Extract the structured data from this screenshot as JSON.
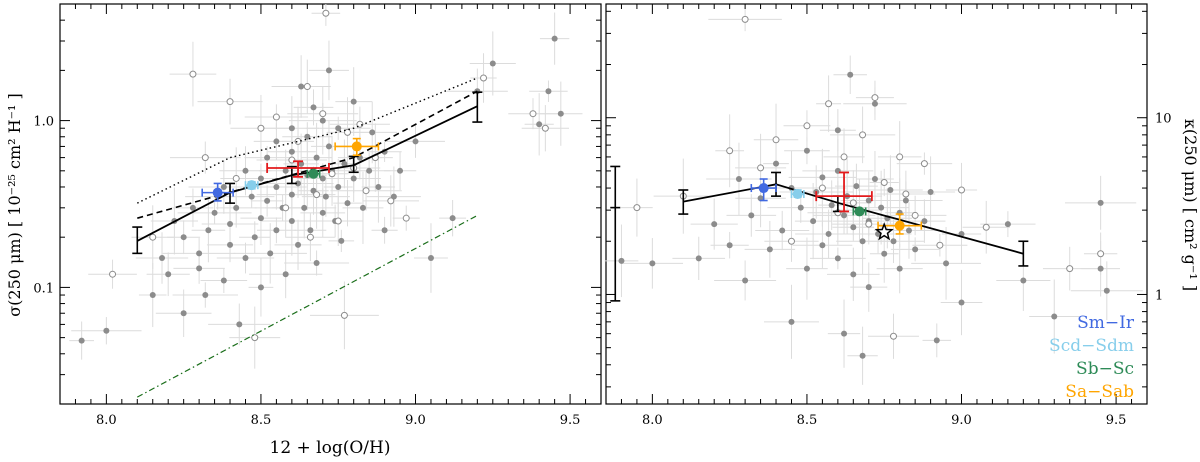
{
  "chart_data": {
    "type": "scatter",
    "xlabel": "12 + log(O/H)",
    "xlim": [
      7.85,
      9.6
    ],
    "xticks": [
      "8.0",
      "8.5",
      "9.0",
      "9.5"
    ],
    "grid": false,
    "panels": [
      {
        "id": "left",
        "ylabel": "σ(250 μm)  [ 10⁻²⁵ cm² H⁻¹ ]",
        "yscale": "log",
        "ylim": [
          0.02,
          5.0
        ],
        "yticks": [
          "0.1",
          "1.0"
        ],
        "model_line": {
          "x": [
            8.1,
            8.4,
            8.6,
            8.8,
            9.2
          ],
          "y": [
            0.19,
            0.37,
            0.47,
            0.54,
            1.22
          ],
          "err_lo": [
            0.16,
            0.32,
            0.42,
            0.49,
            0.98
          ],
          "err_hi": [
            0.23,
            0.42,
            0.53,
            0.61,
            1.48
          ]
        },
        "dashed_line": {
          "x": [
            8.1,
            8.8,
            9.2
          ],
          "y": [
            0.26,
            0.6,
            1.5
          ]
        },
        "dotted_line": {
          "x": [
            8.1,
            8.4,
            8.8,
            9.2
          ],
          "y": [
            0.32,
            0.6,
            0.9,
            1.8
          ]
        },
        "dashdot_line": {
          "x": [
            8.1,
            9.2
          ],
          "y": [
            0.022,
            0.27
          ]
        },
        "red_point": {
          "x": 8.62,
          "y": 0.52,
          "xerr": 0.1,
          "y_lo": 0.46,
          "y_hi": 0.57
        },
        "class_points": [
          {
            "label": "Sm−Ir",
            "color": "#4169e1",
            "x": 8.36,
            "y": 0.37,
            "xerr": 0.05,
            "y_lo": 0.33,
            "y_hi": 0.42
          },
          {
            "label": "Scd−Sdm",
            "color": "#87ceeb",
            "x": 8.47,
            "y": 0.41,
            "xerr": 0.02,
            "y_lo": 0.39,
            "y_hi": 0.43
          },
          {
            "label": "Sb−Sc",
            "color": "#2e8b57",
            "x": 8.67,
            "y": 0.48,
            "xerr": 0.02,
            "y_lo": 0.46,
            "y_hi": 0.5
          },
          {
            "label": "Sa−Sab",
            "color": "#ffa500",
            "x": 8.81,
            "y": 0.7,
            "xerr": 0.07,
            "y_lo": 0.62,
            "y_hi": 0.78
          }
        ],
        "galaxies_filled": [
          [
            7.92,
            0.048
          ],
          [
            8.0,
            0.055
          ],
          [
            8.15,
            0.09
          ],
          [
            8.18,
            0.15
          ],
          [
            8.2,
            0.12
          ],
          [
            8.22,
            0.25
          ],
          [
            8.25,
            0.07
          ],
          [
            8.25,
            0.2
          ],
          [
            8.28,
            0.3
          ],
          [
            8.3,
            0.13
          ],
          [
            8.3,
            0.16
          ],
          [
            8.32,
            0.09
          ],
          [
            8.33,
            0.22
          ],
          [
            8.35,
            0.28
          ],
          [
            8.36,
            0.35
          ],
          [
            8.38,
            0.11
          ],
          [
            8.38,
            0.4
          ],
          [
            8.4,
            0.18
          ],
          [
            8.4,
            0.24
          ],
          [
            8.42,
            0.3
          ],
          [
            8.43,
            0.06
          ],
          [
            8.45,
            0.5
          ],
          [
            8.45,
            0.15
          ],
          [
            8.47,
            0.35
          ],
          [
            8.48,
            0.2
          ],
          [
            8.5,
            0.26
          ],
          [
            8.5,
            0.45
          ],
          [
            8.5,
            0.1
          ],
          [
            8.52,
            0.33
          ],
          [
            8.52,
            0.6
          ],
          [
            8.53,
            0.16
          ],
          [
            8.55,
            0.4
          ],
          [
            8.55,
            0.22
          ],
          [
            8.55,
            0.75
          ],
          [
            8.57,
            0.3
          ],
          [
            8.58,
            0.5
          ],
          [
            8.58,
            0.12
          ],
          [
            8.6,
            0.36
          ],
          [
            8.6,
            0.65
          ],
          [
            8.6,
            0.25
          ],
          [
            8.6,
            0.9
          ],
          [
            8.62,
            0.42
          ],
          [
            8.62,
            0.18
          ],
          [
            8.63,
            0.55
          ],
          [
            8.63,
            1.6
          ],
          [
            8.64,
            0.3
          ],
          [
            8.65,
            0.47
          ],
          [
            8.65,
            0.8
          ],
          [
            8.66,
            0.22
          ],
          [
            8.67,
            0.38
          ],
          [
            8.67,
            1.2
          ],
          [
            8.68,
            0.6
          ],
          [
            8.68,
            0.14
          ],
          [
            8.7,
            0.45
          ],
          [
            8.7,
            0.28
          ],
          [
            8.7,
            1.0
          ],
          [
            8.71,
            0.35
          ],
          [
            8.72,
            0.7
          ],
          [
            8.72,
            2.0
          ],
          [
            8.73,
            0.5
          ],
          [
            8.74,
            0.25
          ],
          [
            8.75,
            0.4
          ],
          [
            8.75,
            0.9
          ],
          [
            8.76,
            0.19
          ],
          [
            8.77,
            0.55
          ],
          [
            8.78,
            0.32
          ],
          [
            8.8,
            0.45
          ],
          [
            8.8,
            1.3
          ],
          [
            8.82,
            0.6
          ],
          [
            8.83,
            0.3
          ],
          [
            8.85,
            0.5
          ],
          [
            8.86,
            0.85
          ],
          [
            8.88,
            0.4
          ],
          [
            8.9,
            0.22
          ],
          [
            8.9,
            0.65
          ],
          [
            8.93,
            0.35
          ],
          [
            8.95,
            0.5
          ],
          [
            9.0,
            0.75
          ],
          [
            9.05,
            0.15
          ],
          [
            9.12,
            0.26
          ],
          [
            9.2,
            1.5
          ],
          [
            9.25,
            2.2
          ],
          [
            9.4,
            0.95
          ],
          [
            9.43,
            1.5
          ],
          [
            9.45,
            3.1
          ],
          [
            9.47,
            1.1
          ]
        ],
        "galaxies_open": [
          [
            8.02,
            0.12
          ],
          [
            8.15,
            0.2
          ],
          [
            8.28,
            1.9
          ],
          [
            8.32,
            0.6
          ],
          [
            8.4,
            1.3
          ],
          [
            8.42,
            0.45
          ],
          [
            8.48,
            0.05
          ],
          [
            8.5,
            0.9
          ],
          [
            8.55,
            1.05
          ],
          [
            8.58,
            0.3
          ],
          [
            8.6,
            0.58
          ],
          [
            8.62,
            0.75
          ],
          [
            8.65,
            1.6
          ],
          [
            8.66,
            0.2
          ],
          [
            8.68,
            0.36
          ],
          [
            8.7,
            1.1
          ],
          [
            8.71,
            4.4
          ],
          [
            8.73,
            0.48
          ],
          [
            8.75,
            0.25
          ],
          [
            8.77,
            0.068
          ],
          [
            8.78,
            0.85
          ],
          [
            8.8,
            0.52
          ],
          [
            8.82,
            0.95
          ],
          [
            8.84,
            0.38
          ],
          [
            8.87,
            0.6
          ],
          [
            8.92,
            0.33
          ],
          [
            8.97,
            0.26
          ],
          [
            9.22,
            1.8
          ],
          [
            9.38,
            1.1
          ],
          [
            9.42,
            0.9
          ]
        ]
      },
      {
        "id": "right",
        "ylabel": "κ(250 μm)  [ cm² g⁻¹ ]",
        "yscale": "log",
        "ylim": [
          0.24,
          44.0
        ],
        "yticks": [
          "1",
          "10"
        ],
        "model_line": {
          "x": [
            8.1,
            8.4,
            8.6,
            9.2
          ],
          "y": [
            3.35,
            4.2,
            3.3,
            1.7
          ],
          "err_lo": [
            2.85,
            3.6,
            2.95,
            1.45
          ],
          "err_hi": [
            3.9,
            4.9,
            3.6,
            2.0
          ]
        },
        "big_errorbar": {
          "x": 7.88,
          "y": 3.1,
          "y_lo": 0.92,
          "y_hi": 5.3
        },
        "red_point": {
          "x": 8.62,
          "y": 3.6,
          "xerr": 0.09,
          "y_lo": 2.95,
          "y_hi": 4.9
        },
        "star_point": {
          "x": 8.75,
          "y": 2.25
        },
        "class_points": [
          {
            "label": "Sm−Ir",
            "color": "#4169e1",
            "x": 8.36,
            "y": 4.0,
            "xerr": 0.04,
            "y_lo": 3.4,
            "y_hi": 4.5
          },
          {
            "label": "Scd−Sdm",
            "color": "#87ceeb",
            "x": 8.47,
            "y": 3.7,
            "xerr": 0.02,
            "y_lo": 3.55,
            "y_hi": 3.9
          },
          {
            "label": "Sb−Sc",
            "color": "#2e8b57",
            "x": 8.67,
            "y": 2.95,
            "xerr": 0.02,
            "y_lo": 2.85,
            "y_hi": 3.05
          },
          {
            "label": "Sa−Sab",
            "color": "#ffa500",
            "x": 8.8,
            "y": 2.45,
            "xerr": 0.07,
            "y_lo": 2.2,
            "y_hi": 2.85
          }
        ],
        "galaxies_filled": [
          [
            7.9,
            1.55
          ],
          [
            8.0,
            1.5
          ],
          [
            8.15,
            1.6
          ],
          [
            8.2,
            2.5
          ],
          [
            8.25,
            1.9
          ],
          [
            8.28,
            4.5
          ],
          [
            8.3,
            1.2
          ],
          [
            8.32,
            2.8
          ],
          [
            8.35,
            3.5
          ],
          [
            8.38,
            1.8
          ],
          [
            8.4,
            5.5
          ],
          [
            8.42,
            2.3
          ],
          [
            8.45,
            0.7
          ],
          [
            8.45,
            4.0
          ],
          [
            8.48,
            3.1
          ],
          [
            8.5,
            1.4
          ],
          [
            8.5,
            6.5
          ],
          [
            8.52,
            2.6
          ],
          [
            8.53,
            3.8
          ],
          [
            8.55,
            1.9
          ],
          [
            8.55,
            4.6
          ],
          [
            8.57,
            2.2
          ],
          [
            8.58,
            3.2
          ],
          [
            8.6,
            1.6
          ],
          [
            8.6,
            5.0
          ],
          [
            8.6,
            8.5
          ],
          [
            8.62,
            2.8
          ],
          [
            8.62,
            0.6
          ],
          [
            8.63,
            3.6
          ],
          [
            8.64,
            17.5
          ],
          [
            8.65,
            2.4
          ],
          [
            8.65,
            1.3
          ],
          [
            8.66,
            4.1
          ],
          [
            8.67,
            3.0
          ],
          [
            8.68,
            2.0
          ],
          [
            8.68,
            0.45
          ],
          [
            8.7,
            3.4
          ],
          [
            8.7,
            2.6
          ],
          [
            8.7,
            1.1
          ],
          [
            8.72,
            4.5
          ],
          [
            8.72,
            12.0
          ],
          [
            8.73,
            2.2
          ],
          [
            8.74,
            3.1
          ],
          [
            8.75,
            1.7
          ],
          [
            8.76,
            2.7
          ],
          [
            8.77,
            3.9
          ],
          [
            8.78,
            2.0
          ],
          [
            8.8,
            2.9
          ],
          [
            8.8,
            1.4
          ],
          [
            8.82,
            3.4
          ],
          [
            8.83,
            2.3
          ],
          [
            8.85,
            1.8
          ],
          [
            8.88,
            2.6
          ],
          [
            8.9,
            3.8
          ],
          [
            8.92,
            0.55
          ],
          [
            8.95,
            1.5
          ],
          [
            9.0,
            2.2
          ],
          [
            9.0,
            0.9
          ],
          [
            9.15,
            2.5
          ],
          [
            9.2,
            1.2
          ],
          [
            9.3,
            0.75
          ],
          [
            9.45,
            1.4
          ],
          [
            9.45,
            3.3
          ],
          [
            9.47,
            1.05
          ]
        ],
        "galaxies_open": [
          [
            7.95,
            3.1
          ],
          [
            8.1,
            3.6
          ],
          [
            8.25,
            6.5
          ],
          [
            8.3,
            36.0
          ],
          [
            8.35,
            5.2
          ],
          [
            8.4,
            7.5
          ],
          [
            8.45,
            2.0
          ],
          [
            8.5,
            9.0
          ],
          [
            8.55,
            4.0
          ],
          [
            8.57,
            12.0
          ],
          [
            8.6,
            2.9
          ],
          [
            8.62,
            6.0
          ],
          [
            8.65,
            3.3
          ],
          [
            8.68,
            8.0
          ],
          [
            8.7,
            2.5
          ],
          [
            8.72,
            13.0
          ],
          [
            8.75,
            4.3
          ],
          [
            8.78,
            0.58
          ],
          [
            8.8,
            6.0
          ],
          [
            8.82,
            3.7
          ],
          [
            8.85,
            2.8
          ],
          [
            8.88,
            5.5
          ],
          [
            8.93,
            1.9
          ],
          [
            9.0,
            3.9
          ],
          [
            9.08,
            2.4
          ],
          [
            9.35,
            1.4
          ],
          [
            9.45,
            1.7
          ]
        ]
      }
    ],
    "legend": {
      "placement": "lower-right",
      "entries": [
        {
          "label": "Sm−Ir",
          "color": "#4169e1"
        },
        {
          "label": "Scd−Sdm",
          "color": "#87ceeb"
        },
        {
          "label": "Sb−Sc",
          "color": "#2e8b57"
        },
        {
          "label": "Sa−Sab",
          "color": "#ffa500"
        }
      ]
    },
    "colors": {
      "galaxy": "#8c8c8c",
      "galaxy_err": "#dcdcdc",
      "model": "#000000",
      "red_point": "#e31a1c",
      "dashdot": "#1a6e1a"
    }
  }
}
